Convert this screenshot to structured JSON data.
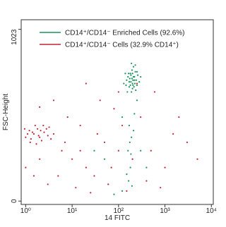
{
  "chart_data": {
    "type": "scatter",
    "xlabel": "14 FITC",
    "ylabel": "FSC-Height",
    "xscale": "log",
    "xlim": [
      0.8,
      11000
    ],
    "ylim": [
      -20,
      1080
    ],
    "xticks": [
      {
        "value": 1,
        "label": "10⁰"
      },
      {
        "value": 10,
        "label": "10¹"
      },
      {
        "value": 100,
        "label": "10²"
      },
      {
        "value": 1000,
        "label": "10³"
      },
      {
        "value": 10000,
        "label": "10⁴"
      }
    ],
    "yticks": [
      0,
      1023
    ],
    "legend": "upper right",
    "series": [
      {
        "name": "CD14⁺/CD14⁻ Enriched Cells (92.6%)",
        "color": "#17955a",
        "x": [
          150,
          180,
          200,
          220,
          250,
          170,
          210,
          190,
          230,
          160,
          240,
          200,
          185,
          215,
          175,
          260,
          145,
          205,
          195,
          225,
          165,
          235,
          180,
          210,
          190,
          250,
          170,
          220,
          200,
          185,
          140,
          280,
          130,
          300,
          155,
          230,
          205,
          195,
          170,
          190,
          160,
          200,
          180,
          175,
          210,
          150,
          185,
          165,
          195,
          120,
          80,
          60,
          300,
          400,
          30,
          50,
          220,
          250,
          120
        ],
        "values": [
          720,
          760,
          700,
          740,
          690,
          680,
          800,
          650,
          770,
          740,
          720,
          760,
          710,
          680,
          730,
          750,
          690,
          720,
          780,
          700,
          760,
          660,
          690,
          740,
          820,
          770,
          710,
          720,
          670,
          750,
          760,
          710,
          700,
          740,
          650,
          810,
          690,
          730,
          450,
          380,
          300,
          250,
          200,
          350,
          420,
          160,
          280,
          120,
          90,
          60,
          40,
          100,
          300,
          200,
          300,
          250,
          520,
          600,
          500
        ]
      },
      {
        "name": "CD14⁺/CD14⁻ Cells (32.9% CD14⁺)",
        "color": "#c0272d",
        "x": [
          1.2,
          1.5,
          2,
          1.8,
          2.5,
          1.3,
          3,
          1.6,
          2.2,
          1.1,
          2.8,
          1.9,
          1.4,
          3.5,
          1,
          2.4,
          1.7,
          2.1,
          0.95,
          4,
          1.25,
          3.2,
          6,
          10,
          20,
          30,
          8,
          15,
          50,
          100,
          200,
          500,
          1000,
          3000,
          40,
          80,
          300,
          600,
          2000,
          5,
          12,
          25,
          60,
          150,
          400,
          800,
          4,
          2,
          1.5,
          3,
          20,
          100,
          250,
          7,
          15,
          35,
          70,
          120,
          1500,
          5000,
          1,
          2
        ],
        "values": [
          420,
          400,
          380,
          430,
          410,
          370,
          390,
          450,
          360,
          400,
          430,
          390,
          410,
          370,
          380,
          450,
          340,
          420,
          430,
          400,
          350,
          440,
          300,
          250,
          200,
          150,
          500,
          450,
          350,
          300,
          250,
          300,
          200,
          350,
          600,
          550,
          500,
          650,
          500,
          150,
          80,
          50,
          100,
          60,
          120,
          80,
          600,
          250,
          150,
          100,
          700,
          650,
          700,
          350,
          300,
          400,
          200,
          450,
          400,
          250,
          200,
          560
        ]
      }
    ]
  }
}
